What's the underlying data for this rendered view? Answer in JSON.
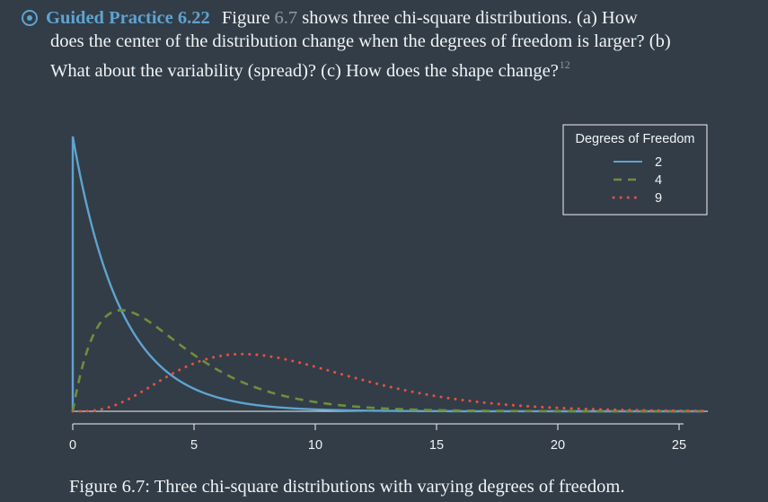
{
  "practice": {
    "label": "Guided Practice 6.22",
    "text_pre": "Figure",
    "figure_ref": "6.7",
    "text_line1_post": "shows three chi-square distributions. (a) How",
    "text_line2": "does the center of the distribution change when the degrees of freedom is larger? (b)",
    "text_line3": "What about the variability (spread)? (c) How does the shape change?",
    "footnote": "12"
  },
  "chart_data": {
    "type": "line",
    "title": "",
    "xlabel": "",
    "ylabel": "",
    "xlim": [
      0,
      26
    ],
    "xticks": [
      0,
      5,
      10,
      15,
      20,
      25
    ],
    "x_step": 0.1,
    "legend": {
      "title": "Degrees of Freedom",
      "placement": "top-right"
    },
    "series": [
      {
        "name": "2",
        "df": 2,
        "style": "solid",
        "color": "#5fa3cf"
      },
      {
        "name": "4",
        "df": 4,
        "style": "dashed",
        "color": "#6d8f3a"
      },
      {
        "name": "9",
        "df": 9,
        "style": "dotted",
        "color": "#e8503e"
      }
    ]
  },
  "caption": "Figure 6.7: Three chi-square distributions with varying degrees of freedom."
}
